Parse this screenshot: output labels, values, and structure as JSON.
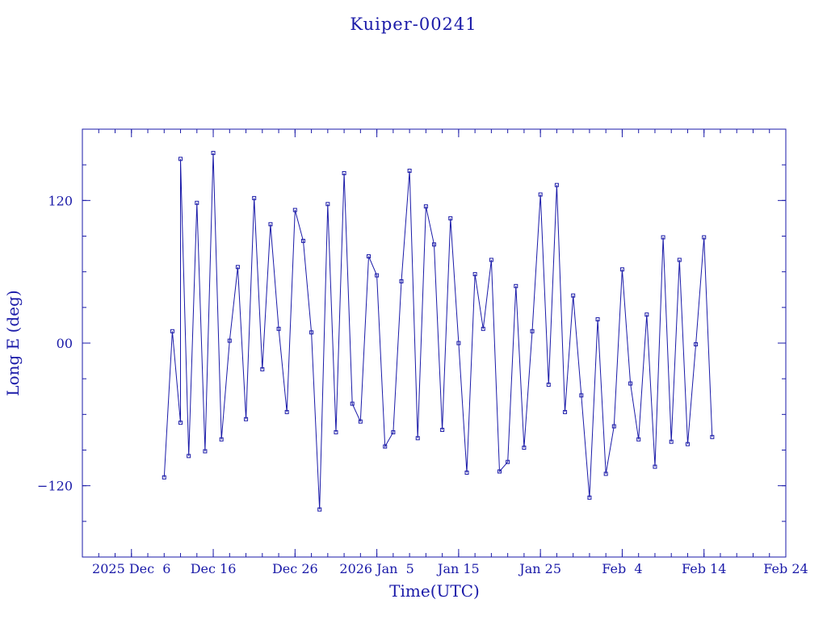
{
  "chart_data": {
    "type": "scatter",
    "title": "Kuiper-00241",
    "xlabel": "Time(UTC)",
    "ylabel": "Long E (deg)",
    "color": "#1a1aa8",
    "points_connected": true,
    "x_ticks": [
      {
        "date": "2025-12-06",
        "label": "2025 Dec  6"
      },
      {
        "date": "2025-12-16",
        "label": "Dec 16"
      },
      {
        "date": "2025-12-26",
        "label": "Dec 26"
      },
      {
        "date": "2026-01-05",
        "label": "2026 Jan  5"
      },
      {
        "date": "2026-01-15",
        "label": "Jan 15"
      },
      {
        "date": "2026-01-25",
        "label": "Jan 25"
      },
      {
        "date": "2026-02-04",
        "label": "Feb  4"
      },
      {
        "date": "2026-02-14",
        "label": "Feb 14"
      },
      {
        "date": "2026-02-24",
        "label": "Feb 24"
      }
    ],
    "xlim": [
      "2025-11-30",
      "2026-02-24"
    ],
    "y_ticks": [
      {
        "value": -120,
        "label": "−120"
      },
      {
        "value": 0,
        "label": "00"
      },
      {
        "value": 120,
        "label": "120"
      }
    ],
    "ylim": [
      -180,
      180
    ],
    "series": [
      {
        "x": [
          "2025-12-10",
          "2025-12-11",
          "2025-12-12",
          "2025-12-12",
          "2025-12-13",
          "2025-12-14",
          "2025-12-15",
          "2025-12-16",
          "2025-12-17",
          "2025-12-18",
          "2025-12-19",
          "2025-12-20",
          "2025-12-21",
          "2025-12-22",
          "2025-12-23",
          "2025-12-24",
          "2025-12-25",
          "2025-12-26",
          "2025-12-27",
          "2025-12-28",
          "2025-12-29",
          "2025-12-30",
          "2025-12-31",
          "2026-01-01",
          "2026-01-02",
          "2026-01-03",
          "2026-01-04",
          "2026-01-05",
          "2026-01-06",
          "2026-01-07",
          "2026-01-08",
          "2026-01-09",
          "2026-01-10",
          "2026-01-11",
          "2026-01-12",
          "2026-01-13",
          "2026-01-14",
          "2026-01-15",
          "2026-01-16",
          "2026-01-17",
          "2026-01-18",
          "2026-01-19",
          "2026-01-20",
          "2026-01-21",
          "2026-01-22",
          "2026-01-23",
          "2026-01-24",
          "2026-01-25",
          "2026-01-26",
          "2026-01-27",
          "2026-01-28",
          "2026-01-29",
          "2026-01-30",
          "2026-01-31",
          "2026-02-01",
          "2026-02-02",
          "2026-02-03",
          "2026-02-04",
          "2026-02-05",
          "2026-02-06",
          "2026-02-07",
          "2026-02-08",
          "2026-02-09",
          "2026-02-10",
          "2026-02-11",
          "2026-02-12",
          "2026-02-13",
          "2026-02-14",
          "2026-02-15"
        ],
        "y": [
          -113,
          10,
          -67,
          155,
          -95,
          118,
          -91,
          160,
          -81,
          2,
          64,
          -64,
          122,
          -22,
          100,
          12,
          -58,
          112,
          86,
          9,
          -140,
          117,
          -75,
          143,
          -51,
          -66,
          73,
          57,
          -87,
          -75,
          52,
          145,
          -80,
          115,
          83,
          -73,
          105,
          0,
          -109,
          58,
          12,
          70,
          -108,
          -100,
          48,
          -88,
          10,
          125,
          -35,
          133,
          -58,
          40,
          -44,
          -130,
          20,
          -110,
          -70,
          62,
          -34,
          -81,
          24,
          -104,
          89,
          -83,
          70,
          -85,
          -1,
          89,
          -79
        ]
      }
    ]
  }
}
